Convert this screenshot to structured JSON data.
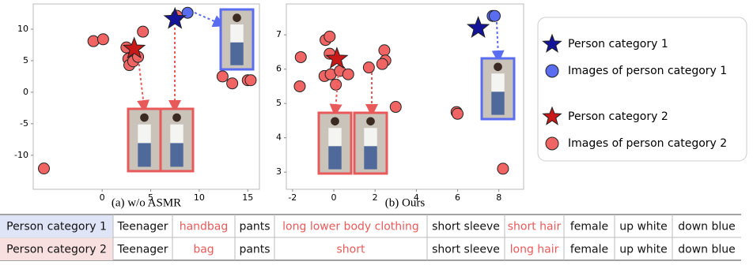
{
  "chart_data": [
    {
      "type": "scatter",
      "caption": "(a) w/o ASMR",
      "xlim": [
        -7.1,
        16.2
      ],
      "ylim": [
        -15.4,
        14
      ],
      "xticks": [
        0,
        5,
        10,
        15
      ],
      "yticks": [
        10,
        5,
        0,
        -5,
        -10
      ],
      "series": [
        {
          "name": "Person category 1",
          "marker": "star",
          "color": "#14149a",
          "x": [
            7.5
          ],
          "y": [
            11.6
          ]
        },
        {
          "name": "Images of person category 1",
          "marker": "circle",
          "color": "#5a6cf0",
          "x": [
            8.8
          ],
          "y": [
            12.6
          ]
        },
        {
          "name": "Person category 2",
          "marker": "star",
          "color": "#c81818",
          "x": [
            3.3
          ],
          "y": [
            6.9
          ]
        },
        {
          "name": "Images of person category 2",
          "marker": "circle",
          "color": "#f06464",
          "x": [
            -0.9,
            0.1,
            4.2,
            2.5,
            2.7,
            2.8,
            3.2,
            3.7,
            7.7,
            12.4,
            13.4,
            15,
            15.3,
            -6
          ],
          "y": [
            8.1,
            8.4,
            9.6,
            7.1,
            5.3,
            4.3,
            4.9,
            5.6,
            12.1,
            2.5,
            1.4,
            1.9,
            1.9,
            -12.1
          ]
        }
      ]
    },
    {
      "type": "scatter",
      "caption": "(b) Ours",
      "xlim": [
        -2.3,
        9.2
      ],
      "ylim": [
        2.5,
        7.9
      ],
      "xticks": [
        -2,
        0,
        2,
        4,
        6,
        8
      ],
      "yticks": [
        7,
        6,
        5,
        4,
        3
      ],
      "series": [
        {
          "marker": "star",
          "color": "#14149a",
          "x": [
            7.0
          ],
          "y": [
            7.2
          ]
        },
        {
          "marker": "circle",
          "color": "#5a6cf0",
          "x": [
            7.7,
            7.8
          ],
          "y": [
            7.55,
            7.55
          ]
        },
        {
          "marker": "star",
          "color": "#c81818",
          "x": [
            0.15
          ],
          "y": [
            6.3
          ]
        },
        {
          "marker": "circle",
          "color": "#f06464",
          "x": [
            -1.6,
            -1.65,
            -0.4,
            -0.2,
            -0.2,
            -0.45,
            -0.15,
            0.1,
            0.3,
            0.7,
            1.7,
            2.45,
            2.5,
            2.35,
            3.0,
            5.95,
            6.0,
            8.2
          ],
          "y": [
            6.35,
            5.5,
            6.85,
            6.95,
            6.45,
            5.8,
            5.85,
            5.55,
            5.95,
            5.85,
            6.05,
            6.55,
            6.25,
            6.15,
            4.9,
            4.75,
            4.7,
            3.1
          ]
        }
      ]
    }
  ],
  "table": {
    "highlight_color": "#e85a5a",
    "highlight_columns": [
      2,
      4,
      6
    ],
    "row_colors": [
      "#dfe5f7",
      "#f9e0e0"
    ],
    "rows": [
      [
        "Person category 1",
        "Teenager",
        "handbag",
        "pants",
        "long lower body clothing",
        "short sleeve",
        "short hair",
        "female",
        "up white",
        "down blue"
      ],
      [
        "Person category 2",
        "Teenager",
        "bag",
        "pants",
        "short",
        "short sleeve",
        "long hair",
        "female",
        "up white",
        "down blue"
      ]
    ]
  }
}
